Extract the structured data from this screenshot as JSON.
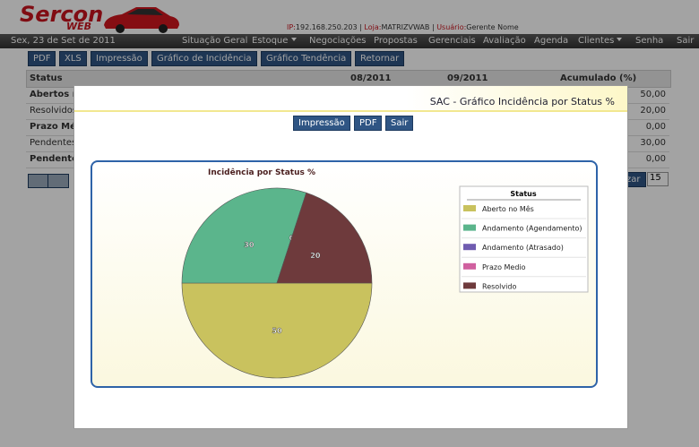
{
  "header": {
    "logo": "Sercon",
    "logo_sub": "WEB",
    "separator": "|",
    "ip_label": "IP:",
    "ip": "192.168.250.203",
    "loja_label": "Loja:",
    "loja": "MATRIZVWAB",
    "usuario_label": "Usuário:",
    "usuario": "Gerente Nome"
  },
  "menu": {
    "date": "Sex, 23 de Set de 2011",
    "items": [
      "Situação Geral",
      "Estoque",
      "Negociações",
      "Propostas",
      "Gerenciais",
      "Avaliação",
      "Agenda",
      "Clientes",
      "Senha",
      "Sair"
    ]
  },
  "toolbar": {
    "buttons": [
      "PDF",
      "XLS",
      "Impressão",
      "Gráfico de Incidência",
      "Gráfico Tendência",
      "Retornar"
    ]
  },
  "table": {
    "headers": [
      "Status",
      "08/2011",
      "09/2011",
      "Acumulado (%)"
    ],
    "rows": [
      [
        "Abertos no",
        "50,00"
      ],
      [
        "Resolvidos",
        "20,00"
      ],
      [
        "Prazo Médi",
        "0,00"
      ],
      [
        "Pendentes",
        "30,00"
      ],
      [
        "Pendentes",
        "0,00"
      ]
    ]
  },
  "pager": {
    "button": "zar",
    "page_size": "15"
  },
  "modal": {
    "title": "SAC - Gráfico Incidência por Status %",
    "buttons": [
      "Impressão",
      "PDF",
      "Sair"
    ]
  },
  "chart_data": {
    "type": "pie",
    "title": "Incidência por Status %",
    "legend_title": "Status",
    "categories": [
      "Aberto no Mês",
      "Andamento (Agendamento)",
      "Andamento (Atrasado)",
      "Prazo Medio",
      "Resolvido"
    ],
    "values": [
      50,
      30,
      0,
      0,
      20
    ],
    "colors": [
      "#c9c25e",
      "#5bb58c",
      "#6f5cb0",
      "#d0609f",
      "#6e3a3c"
    ],
    "legend": "right"
  }
}
